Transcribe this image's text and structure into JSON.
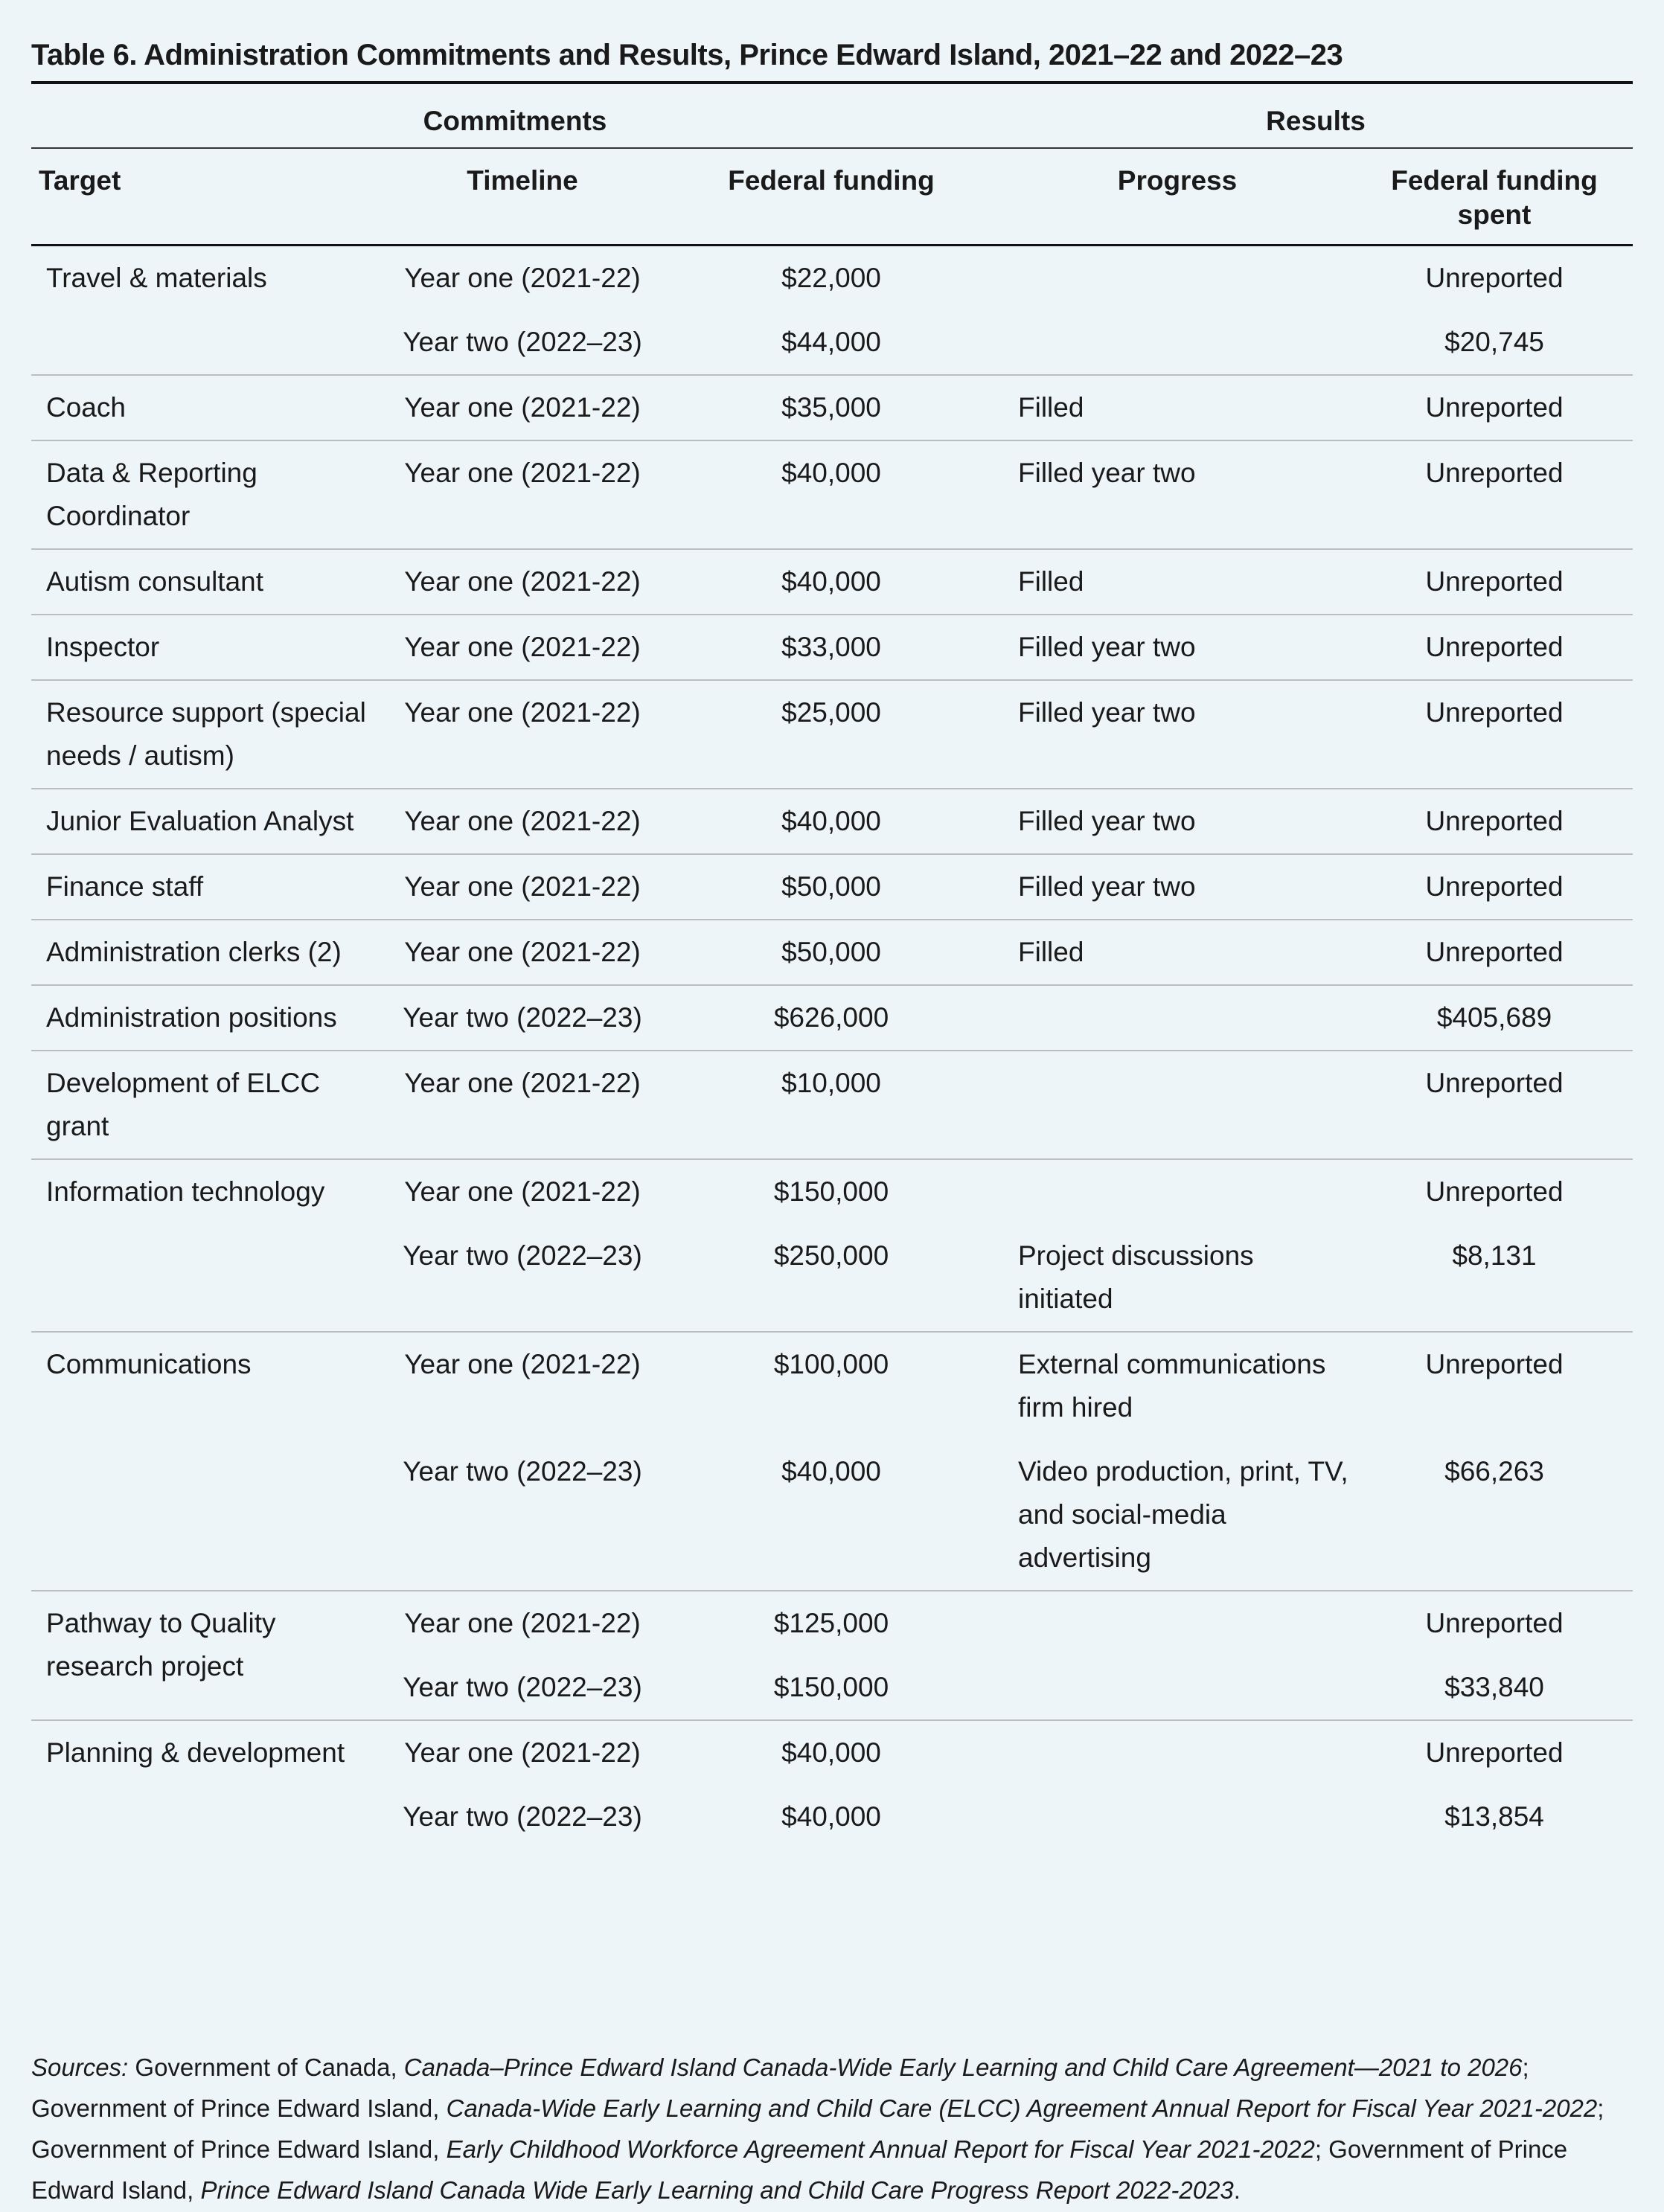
{
  "title": "Table 6. Administration Commitments and Results, Prince Edward Island, 2021–22 and 2022–23",
  "column_groups": [
    "Commitments",
    "Results"
  ],
  "columns": [
    "Target",
    "Timeline",
    "Federal funding",
    "Progress",
    "Federal funding spent"
  ],
  "groups": [
    {
      "target": "Travel & materials",
      "entries": [
        {
          "timeline": "Year one (2021-22)",
          "funding": "$22,000",
          "spent": "Unreported"
        },
        {
          "timeline": "Year two (2022–23)",
          "funding": "$44,000",
          "spent": "$20,745"
        }
      ]
    },
    {
      "target": "Coach",
      "entries": [
        {
          "timeline": "Year one (2021-22)",
          "funding": "$35,000",
          "progress": "Filled",
          "spent": "Unreported"
        }
      ]
    },
    {
      "target": "Data & Reporting Coordinator",
      "entries": [
        {
          "timeline": "Year one (2021-22)",
          "funding": "$40,000",
          "progress": "Filled year two",
          "spent": "Unreported"
        }
      ]
    },
    {
      "target": "Autism consultant",
      "entries": [
        {
          "timeline": "Year one (2021-22)",
          "funding": "$40,000",
          "progress": "Filled",
          "spent": "Unreported"
        }
      ]
    },
    {
      "target": "Inspector",
      "entries": [
        {
          "timeline": "Year one (2021-22)",
          "funding": "$33,000",
          "progress": "Filled year two",
          "spent": "Unreported"
        }
      ]
    },
    {
      "target": "Resource support (special needs / autism)",
      "entries": [
        {
          "timeline": "Year one (2021-22)",
          "funding": "$25,000",
          "progress": "Filled year two",
          "spent": "Unreported"
        }
      ]
    },
    {
      "target": "Junior Evaluation Analyst",
      "entries": [
        {
          "timeline": "Year one (2021-22)",
          "funding": "$40,000",
          "progress": "Filled year two",
          "spent": "Unreported"
        }
      ]
    },
    {
      "target": "Finance staff",
      "entries": [
        {
          "timeline": "Year one (2021-22)",
          "funding": "$50,000",
          "progress": "Filled year two",
          "spent": "Unreported"
        }
      ]
    },
    {
      "target": "Administration clerks (2)",
      "entries": [
        {
          "timeline": "Year one (2021-22)",
          "funding": "$50,000",
          "progress": "Filled",
          "spent": "Unreported"
        }
      ]
    },
    {
      "target": "Administration positions",
      "entries": [
        {
          "timeline": "Year two (2022–23)",
          "funding": "$626,000",
          "spent": "$405,689"
        }
      ]
    },
    {
      "target": "Development of ELCC grant",
      "entries": [
        {
          "timeline": "Year one (2021-22)",
          "funding": "$10,000",
          "spent": "Unreported"
        }
      ]
    },
    {
      "target": "Information technology",
      "entries": [
        {
          "timeline": "Year one (2021-22)",
          "funding": "$150,000",
          "spent": "Unreported"
        },
        {
          "timeline": "Year two (2022–23)",
          "funding": "$250,000",
          "progress": "Project discussions initiated",
          "spent": "$8,131"
        }
      ]
    },
    {
      "target": "Communications",
      "entries": [
        {
          "timeline": "Year one (2021-22)",
          "funding": "$100,000",
          "progress": "External communications firm hired",
          "spent": "Unreported"
        },
        {
          "timeline": "Year two (2022–23)",
          "funding": "$40,000",
          "progress": "Video production, print, TV, and social-media advertising",
          "spent": "$66,263"
        }
      ]
    },
    {
      "target": "Pathway to Quality research project",
      "entries": [
        {
          "timeline": "Year one (2021-22)",
          "funding": "$125,000",
          "spent": "Unreported"
        },
        {
          "timeline": "Year two (2022–23)",
          "funding": "$150,000",
          "spent": "$33,840"
        }
      ]
    },
    {
      "target": "Planning & development",
      "entries": [
        {
          "timeline": "Year one (2021-22)",
          "funding": "$40,000",
          "spent": "Unreported"
        },
        {
          "timeline": "Year two (2022–23)",
          "funding": "$40,000",
          "spent": "$13,854"
        }
      ]
    }
  ],
  "sources": [
    {
      "text": "Sources:",
      "italic": true
    },
    {
      "text": " Government of Canada, ",
      "italic": false
    },
    {
      "text": "Canada–Prince Edward Island Canada-Wide Early Learning and Child Care Agreement—2021 to 2026",
      "italic": true
    },
    {
      "text": "; Government of Prince Edward Island, ",
      "italic": false
    },
    {
      "text": "Canada-Wide Early Learning and Child Care (ELCC) Agreement Annual Report for Fiscal Year 2021-2022",
      "italic": true
    },
    {
      "text": "; Government of Prince Edward Island, ",
      "italic": false
    },
    {
      "text": "Early Childhood Workforce Agreement Annual Report for Fiscal Year 2021-2022",
      "italic": true
    },
    {
      "text": "; Government of Prince Edward Island, ",
      "italic": false
    },
    {
      "text": "Prince Edward Island Canada Wide Early Learning and Child Care Progress Report 2022-2023",
      "italic": true
    },
    {
      "text": ".",
      "italic": false
    }
  ]
}
